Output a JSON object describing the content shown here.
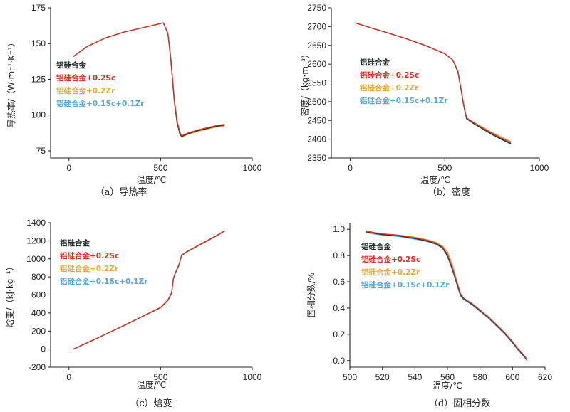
{
  "colors": {
    "base": "#1f2a2a",
    "sc": "#d9322a",
    "zr": "#e8a93a",
    "sczr": "#5aa6d6"
  },
  "chart_data": [
    {
      "id": "a",
      "type": "line",
      "caption": "（a）导热率",
      "xlabel": "温度/℃",
      "ylabel": "导热率/（W·m⁻¹·K⁻¹）",
      "xlim": [
        -100,
        1000
      ],
      "ylim": [
        70,
        175
      ],
      "xticks": [
        0,
        500,
        1000
      ],
      "yticks": [
        75,
        100,
        125,
        150,
        175
      ],
      "legend": [
        "铝硅合金",
        "铝硅合金+0.2Sc",
        "铝硅合金+0.2Zr",
        "铝硅合金+0.1Sc+0.1Zr"
      ],
      "series": [
        {
          "name": "铝硅合金",
          "x": [
            25,
            100,
            200,
            300,
            400,
            500,
            515,
            540,
            555,
            565,
            575,
            590,
            605,
            615,
            650,
            700,
            750,
            800,
            850
          ],
          "y": [
            141,
            148,
            154,
            158,
            161,
            164,
            164.5,
            157,
            140,
            125,
            110,
            95,
            87,
            85,
            87,
            89,
            90.5,
            92,
            93
          ]
        },
        {
          "name": "铝硅合金+0.2Sc",
          "x": [
            25,
            100,
            200,
            300,
            400,
            500,
            515,
            540,
            555,
            565,
            575,
            590,
            605,
            615,
            650,
            700,
            750,
            800,
            850
          ],
          "y": [
            141,
            148,
            154,
            158,
            161,
            164,
            164.5,
            157,
            141,
            126,
            111,
            96,
            88,
            85.5,
            87.5,
            89.5,
            91,
            92.5,
            93.5
          ]
        },
        {
          "name": "铝硅合金+0.2Zr",
          "x": [
            25,
            100,
            200,
            300,
            400,
            500,
            515,
            540,
            555,
            565,
            575,
            590,
            605,
            615,
            650,
            700,
            750,
            800,
            850
          ],
          "y": [
            141,
            148,
            154,
            158,
            161,
            164,
            164.5,
            157,
            139,
            124,
            109,
            94,
            86.5,
            84.5,
            86.5,
            88.5,
            90,
            91.5,
            92.5
          ]
        },
        {
          "name": "铝硅合金+0.1Sc+0.1Zr",
          "x": [
            25,
            100,
            200,
            300,
            400,
            500,
            515,
            540,
            555,
            565,
            575,
            590,
            605,
            615,
            650,
            700,
            750,
            800,
            850
          ],
          "y": [
            141,
            148,
            154,
            158,
            161,
            164,
            164.5,
            157,
            140.5,
            125.5,
            110.5,
            95.5,
            87.5,
            85,
            87,
            89,
            90.5,
            92,
            93
          ]
        }
      ]
    },
    {
      "id": "b",
      "type": "line",
      "caption": "（b）密度",
      "xlabel": "温度/℃",
      "ylabel": "密度/（kg·m⁻³）",
      "xlim": [
        -100,
        1000
      ],
      "ylim": [
        2350,
        2750
      ],
      "xticks": [
        0,
        500,
        1000
      ],
      "yticks": [
        2350,
        2400,
        2450,
        2500,
        2550,
        2600,
        2650,
        2700,
        2750
      ],
      "legend": [
        "铝硅合金",
        "铝硅合金+0.2Sc",
        "铝硅合金+0.2Zr",
        "铝硅合金+0.1Sc+0.1Zr"
      ],
      "series": [
        {
          "name": "铝硅合金",
          "x": [
            25,
            100,
            200,
            300,
            400,
            500,
            540,
            555,
            570,
            585,
            600,
            615,
            650,
            700,
            750,
            800,
            850
          ],
          "y": [
            2710,
            2698,
            2683,
            2667,
            2649,
            2628,
            2612,
            2597,
            2578,
            2535,
            2490,
            2455,
            2443,
            2428,
            2413,
            2400,
            2388
          ]
        },
        {
          "name": "铝硅合金+0.2Sc",
          "x": [
            25,
            100,
            200,
            300,
            400,
            500,
            540,
            555,
            570,
            585,
            600,
            615,
            650,
            700,
            750,
            800,
            850
          ],
          "y": [
            2710,
            2698,
            2683,
            2667,
            2649,
            2628,
            2612,
            2598,
            2580,
            2537,
            2492,
            2457,
            2445,
            2430,
            2416,
            2403,
            2391
          ]
        },
        {
          "name": "铝硅合金+0.2Zr",
          "x": [
            25,
            100,
            200,
            300,
            400,
            500,
            540,
            555,
            570,
            585,
            600,
            615,
            650,
            700,
            750,
            800,
            850
          ],
          "y": [
            2710,
            2698,
            2683,
            2667,
            2649,
            2628,
            2612,
            2598,
            2579,
            2536,
            2491,
            2456,
            2446,
            2432,
            2418,
            2406,
            2394
          ]
        },
        {
          "name": "铝硅合金+0.1Sc+0.1Zr",
          "x": [
            25,
            100,
            200,
            300,
            400,
            500,
            540,
            555,
            570,
            585,
            600,
            615,
            650,
            700,
            750,
            800,
            850
          ],
          "y": [
            2710,
            2698,
            2683,
            2667,
            2649,
            2628,
            2612,
            2597,
            2577,
            2534,
            2489,
            2454,
            2442,
            2427,
            2412,
            2399,
            2387
          ]
        }
      ]
    },
    {
      "id": "c",
      "type": "line",
      "caption": "（c）焓变",
      "xlabel": "温度/℃",
      "ylabel": "焓变/（kJ·kg⁻¹）",
      "xlim": [
        -100,
        1000
      ],
      "ylim": [
        -200,
        1400
      ],
      "xticks": [
        0,
        500,
        1000
      ],
      "yticks": [
        -200,
        0,
        200,
        400,
        600,
        800,
        1000,
        1200,
        1400
      ],
      "legend": [
        "铝硅合金",
        "铝硅合金+0.2Sc",
        "铝硅合金+0.2Zr",
        "铝硅合金+0.1Sc+0.1Zr"
      ],
      "series": [
        {
          "name": "铝硅合金",
          "x": [
            25,
            100,
            200,
            300,
            400,
            500,
            540,
            560,
            570,
            580,
            600,
            615,
            650,
            700,
            750,
            800,
            850
          ],
          "y": [
            0,
            70,
            165,
            260,
            360,
            460,
            540,
            620,
            780,
            840,
            930,
            1040,
            1085,
            1140,
            1195,
            1250,
            1310
          ]
        },
        {
          "name": "铝硅合金+0.2Sc",
          "x": [
            25,
            100,
            200,
            300,
            400,
            500,
            540,
            560,
            570,
            580,
            600,
            615,
            650,
            700,
            750,
            800,
            850
          ],
          "y": [
            0,
            70,
            165,
            262,
            362,
            462,
            545,
            625,
            785,
            845,
            935,
            1042,
            1088,
            1143,
            1198,
            1253,
            1312
          ]
        },
        {
          "name": "铝硅合金+0.2Zr",
          "x": [
            25,
            100,
            200,
            300,
            400,
            500,
            540,
            560,
            570,
            580,
            600,
            615,
            650,
            700,
            750,
            800,
            850
          ],
          "y": [
            0,
            70,
            165,
            260,
            360,
            460,
            538,
            618,
            778,
            838,
            928,
            1038,
            1083,
            1138,
            1193,
            1248,
            1308
          ]
        },
        {
          "name": "铝硅合金+0.1Sc+0.1Zr",
          "x": [
            25,
            100,
            200,
            300,
            400,
            500,
            540,
            560,
            570,
            580,
            600,
            615,
            650,
            700,
            750,
            800,
            850
          ],
          "y": [
            0,
            70,
            165,
            261,
            361,
            461,
            542,
            622,
            782,
            842,
            932,
            1040,
            1086,
            1141,
            1196,
            1251,
            1311
          ]
        }
      ]
    },
    {
      "id": "d",
      "type": "line",
      "caption": "（d）固相分数",
      "xlabel": "温度/℃",
      "ylabel": "固相分数/%",
      "xlim": [
        500,
        620
      ],
      "ylim": [
        -0.05,
        1.05
      ],
      "xticks": [
        500,
        520,
        540,
        560,
        580,
        600,
        620
      ],
      "yticks": [
        0.0,
        0.2,
        0.4,
        0.6,
        0.8,
        1.0
      ],
      "legend": [
        "铝硅合金",
        "铝硅合金+0.2Sc",
        "铝硅合金+0.2Zr",
        "铝硅合金+0.1Sc+0.1Zr"
      ],
      "series": [
        {
          "name": "铝硅合金",
          "x": [
            510,
            515,
            520,
            530,
            540,
            548,
            553,
            557,
            560,
            563,
            566,
            568,
            570,
            575,
            580,
            585,
            590,
            595,
            600,
            603,
            606,
            608,
            609
          ],
          "y": [
            0.98,
            0.97,
            0.96,
            0.95,
            0.93,
            0.91,
            0.89,
            0.86,
            0.8,
            0.7,
            0.58,
            0.5,
            0.47,
            0.43,
            0.38,
            0.33,
            0.27,
            0.21,
            0.14,
            0.09,
            0.05,
            0.02,
            0.0
          ]
        },
        {
          "name": "铝硅合金+0.2Sc",
          "x": [
            510,
            515,
            520,
            530,
            540,
            548,
            553,
            557,
            560,
            563,
            566,
            568,
            570,
            575,
            580,
            585,
            590,
            595,
            600,
            603,
            606,
            608,
            609
          ],
          "y": [
            0.985,
            0.975,
            0.965,
            0.955,
            0.935,
            0.915,
            0.895,
            0.865,
            0.81,
            0.71,
            0.59,
            0.51,
            0.475,
            0.435,
            0.385,
            0.335,
            0.275,
            0.215,
            0.145,
            0.095,
            0.055,
            0.025,
            0.0
          ]
        },
        {
          "name": "铝硅合金+0.2Zr",
          "x": [
            510,
            515,
            520,
            530,
            540,
            548,
            553,
            557,
            560,
            563,
            566,
            568,
            570,
            575,
            580,
            585,
            590,
            595,
            600,
            603,
            606,
            608,
            609
          ],
          "y": [
            0.99,
            0.975,
            0.965,
            0.955,
            0.94,
            0.92,
            0.9,
            0.872,
            0.83,
            0.73,
            0.6,
            0.51,
            0.475,
            0.435,
            0.385,
            0.335,
            0.275,
            0.215,
            0.145,
            0.095,
            0.055,
            0.025,
            0.0
          ]
        },
        {
          "name": "铝硅合金+0.1Sc+0.1Zr",
          "x": [
            510,
            515,
            520,
            530,
            540,
            548,
            553,
            557,
            560,
            563,
            566,
            568,
            570,
            575,
            580,
            585,
            590,
            595,
            600,
            603,
            606,
            608,
            609
          ],
          "y": [
            0.975,
            0.965,
            0.955,
            0.945,
            0.925,
            0.905,
            0.885,
            0.855,
            0.79,
            0.69,
            0.57,
            0.49,
            0.465,
            0.425,
            0.375,
            0.325,
            0.265,
            0.205,
            0.135,
            0.085,
            0.045,
            0.015,
            0.0
          ]
        }
      ]
    }
  ]
}
